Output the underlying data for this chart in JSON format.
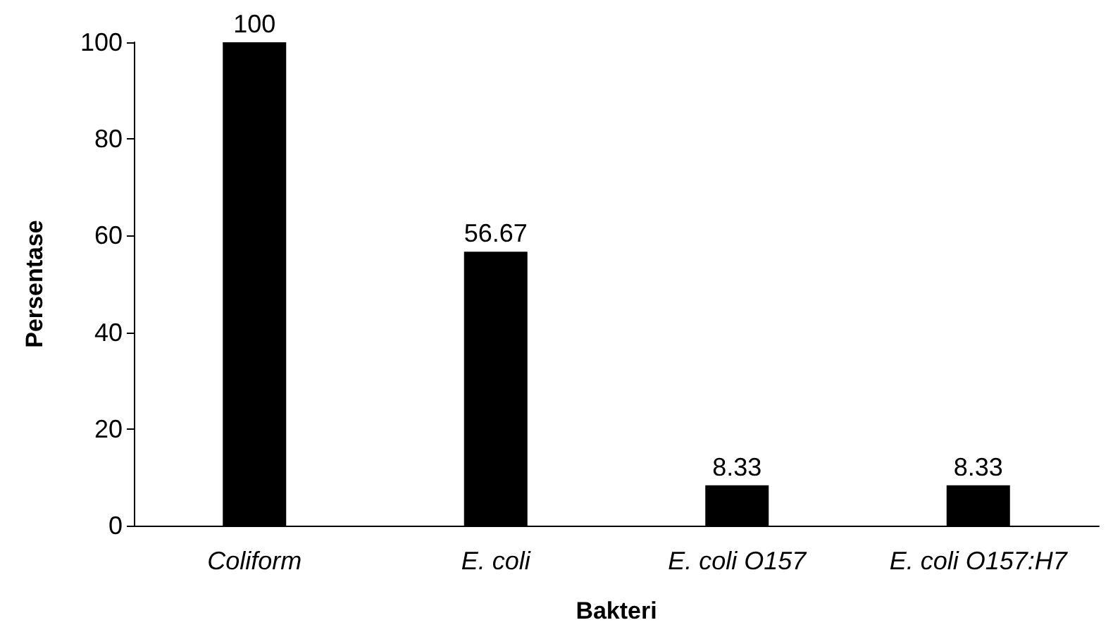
{
  "chart_data": {
    "type": "bar",
    "xlabel": "Bakteri",
    "ylabel": "Persentase",
    "categories": [
      "Coliform",
      "E. coli",
      "E. coli O157",
      "E. coli O157:H7"
    ],
    "values": [
      100,
      56.67,
      8.33,
      8.33
    ],
    "color": "#000000",
    "ylim": [
      0,
      100
    ],
    "yticks": [
      0,
      20,
      40,
      60,
      80,
      100
    ],
    "grid": false,
    "data_labels": true
  }
}
